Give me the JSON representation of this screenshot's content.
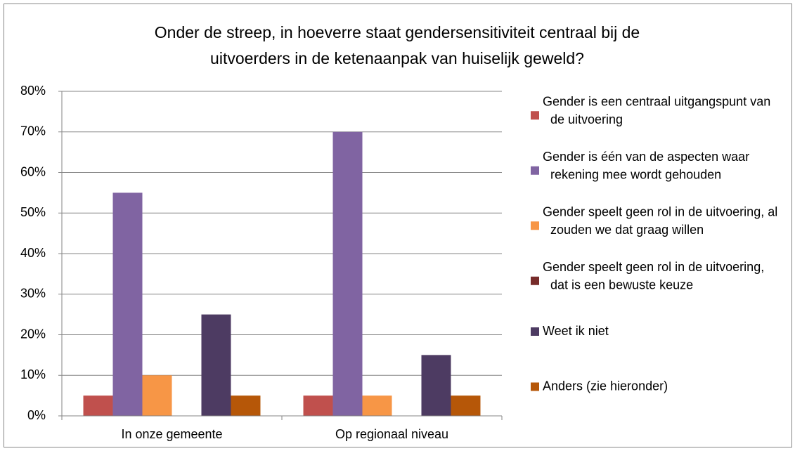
{
  "chart_data": {
    "type": "bar",
    "title": "Onder de streep, in hoeverre staat gendersensitiviteit centraal bij de uitvoerders in de ketenaanpak van huiselijk geweld?",
    "categories": [
      "In onze gemeente",
      "Op regionaal niveau"
    ],
    "series": [
      {
        "name": "Gender is een centraal uitgangspunt van de uitvoering",
        "color": "#c0504d",
        "values": [
          5,
          5
        ]
      },
      {
        "name": "Gender is één van de aspecten waar rekening mee wordt gehouden",
        "color": "#8064a2",
        "values": [
          55,
          70
        ]
      },
      {
        "name": "Gender speelt geen rol in de uitvoering, al zouden we dat graag willen",
        "color": "#f79646",
        "values": [
          10,
          5
        ]
      },
      {
        "name": "Gender speelt geen rol in de uitvoering, dat is een bewuste keuze",
        "color": "#772c2a",
        "values": [
          0,
          0
        ]
      },
      {
        "name": "Weet ik niet",
        "color": "#4d3b62",
        "values": [
          25,
          15
        ]
      },
      {
        "name": "Anders (zie hieronder)",
        "color": "#b65708",
        "values": [
          5,
          5
        ]
      }
    ],
    "ylim": [
      0,
      80
    ],
    "yticks": [
      {
        "value": 0,
        "label": "0%"
      },
      {
        "value": 10,
        "label": "10%"
      },
      {
        "value": 20,
        "label": "20%"
      },
      {
        "value": 30,
        "label": "30%"
      },
      {
        "value": 40,
        "label": "40%"
      },
      {
        "value": 50,
        "label": "50%"
      },
      {
        "value": 60,
        "label": "60%"
      },
      {
        "value": 70,
        "label": "70%"
      },
      {
        "value": 80,
        "label": "80%"
      }
    ],
    "grid": true,
    "legend": "right"
  }
}
